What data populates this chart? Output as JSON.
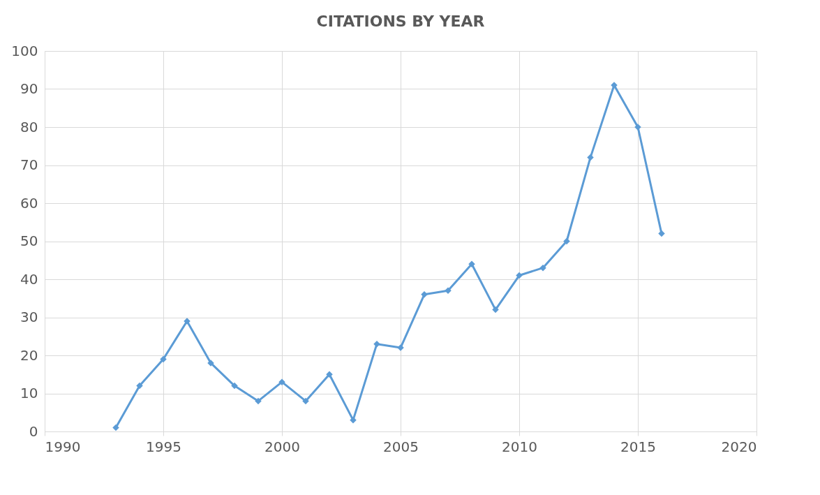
{
  "chart_data": {
    "type": "line",
    "title": "CITATIONS BY YEAR",
    "x": [
      1993,
      1994,
      1995,
      1996,
      1997,
      1998,
      1999,
      2000,
      2001,
      2002,
      2003,
      2004,
      2005,
      2006,
      2007,
      2008,
      2009,
      2010,
      2011,
      2012,
      2013,
      2014,
      2015,
      2016
    ],
    "series": [
      {
        "color": "#5b9bd5",
        "values": [
          1,
          12,
          19,
          29,
          18,
          12,
          8,
          13,
          8,
          15,
          3,
          23,
          22,
          36,
          37,
          44,
          32,
          41,
          43,
          50,
          72,
          91,
          80,
          52
        ]
      }
    ],
    "xlim": [
      1990,
      2020
    ],
    "xticks": [
      1990,
      1995,
      2000,
      2005,
      2010,
      2015,
      2020
    ],
    "ylim": [
      0,
      100
    ],
    "yticks": [
      0,
      10,
      20,
      30,
      40,
      50,
      60,
      70,
      80,
      90,
      100
    ],
    "grid": true,
    "marker": "diamond",
    "line_style": "solid"
  }
}
